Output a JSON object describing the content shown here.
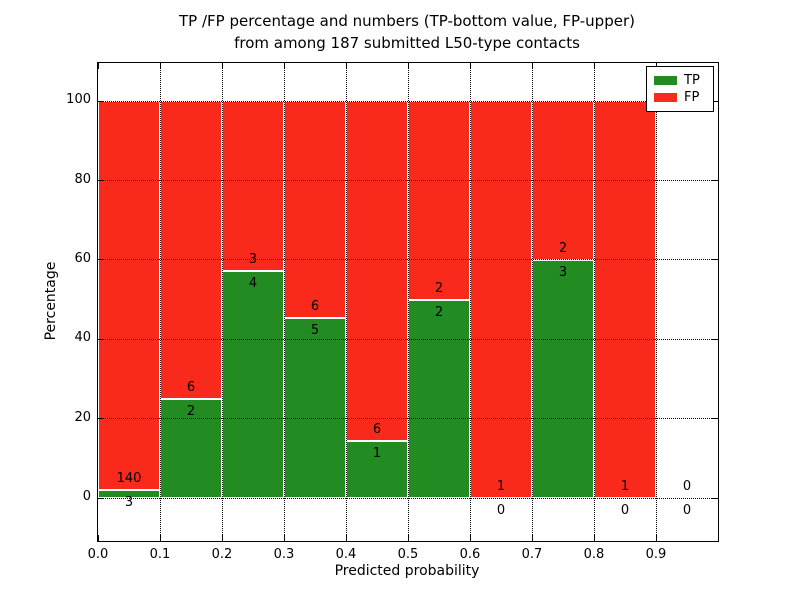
{
  "chart_data": {
    "type": "bar",
    "subtype": "stacked-percentage-histogram",
    "title_lines": [
      "TP /FP percentage and numbers (TP-bottom value, FP-upper)",
      "from among 187 submitted L50-type contacts"
    ],
    "xlabel": "Predicted probability",
    "ylabel": "Percentage",
    "xlim": [
      0.0,
      1.0
    ],
    "ylim": [
      -10.8,
      109.6
    ],
    "grid": "dotted",
    "total_submitted": 187,
    "x_ticks": [
      {
        "value": 0.0,
        "label": "0.0"
      },
      {
        "value": 0.1,
        "label": "0.1"
      },
      {
        "value": 0.2,
        "label": "0.2"
      },
      {
        "value": 0.3,
        "label": "0.3"
      },
      {
        "value": 0.4,
        "label": "0.4"
      },
      {
        "value": 0.5,
        "label": "0.5"
      },
      {
        "value": 0.6,
        "label": "0.6"
      },
      {
        "value": 0.7,
        "label": "0.7"
      },
      {
        "value": 0.8,
        "label": "0.8"
      },
      {
        "value": 0.9,
        "label": "0.9"
      }
    ],
    "y_ticks": [
      {
        "value": 0,
        "label": "0"
      },
      {
        "value": 20,
        "label": "20"
      },
      {
        "value": 40,
        "label": "40"
      },
      {
        "value": 60,
        "label": "60"
      },
      {
        "value": 80,
        "label": "80"
      },
      {
        "value": 100,
        "label": "100"
      }
    ],
    "bins": [
      {
        "x0": 0.0,
        "x1": 0.1,
        "tp": 3,
        "fp": 140
      },
      {
        "x0": 0.1,
        "x1": 0.2,
        "tp": 2,
        "fp": 6
      },
      {
        "x0": 0.2,
        "x1": 0.3,
        "tp": 4,
        "fp": 3
      },
      {
        "x0": 0.3,
        "x1": 0.4,
        "tp": 5,
        "fp": 6
      },
      {
        "x0": 0.4,
        "x1": 0.5,
        "tp": 1,
        "fp": 6
      },
      {
        "x0": 0.5,
        "x1": 0.6,
        "tp": 2,
        "fp": 2
      },
      {
        "x0": 0.6,
        "x1": 0.7,
        "tp": 0,
        "fp": 1
      },
      {
        "x0": 0.7,
        "x1": 0.8,
        "tp": 3,
        "fp": 2
      },
      {
        "x0": 0.8,
        "x1": 0.9,
        "tp": 0,
        "fp": 1
      },
      {
        "x0": 0.9,
        "x1": 1.0,
        "tp": 0,
        "fp": 0
      }
    ],
    "colors": {
      "tp": "#228b22",
      "fp": "#f9291b",
      "edge": "#ffffff",
      "grid": "#000000"
    },
    "legend": {
      "position": "upper-right",
      "entries": [
        {
          "label": "TP",
          "series": "tp"
        },
        {
          "label": "FP",
          "series": "fp"
        }
      ]
    }
  }
}
